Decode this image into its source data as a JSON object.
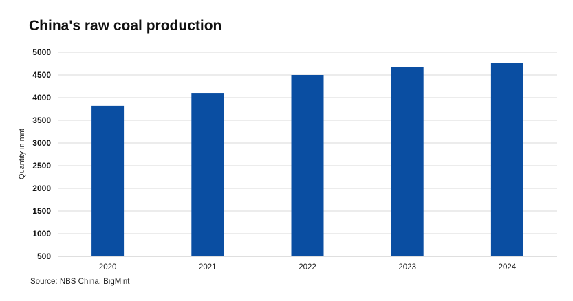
{
  "chart_data": {
    "type": "bar",
    "title": "China's raw coal production",
    "ylabel": "Quantity in mnt",
    "xlabel": "",
    "categories": [
      "2020",
      "2021",
      "2022",
      "2023",
      "2024"
    ],
    "values": [
      3820,
      4090,
      4500,
      4680,
      4760
    ],
    "ylim": [
      500,
      5000
    ],
    "yticks": [
      500,
      1000,
      1500,
      2000,
      2500,
      3000,
      3500,
      4000,
      4500,
      5000
    ],
    "bar_color": "#0a4ea2",
    "gridlines": true,
    "source": "Source: NBS China, BigMint"
  }
}
